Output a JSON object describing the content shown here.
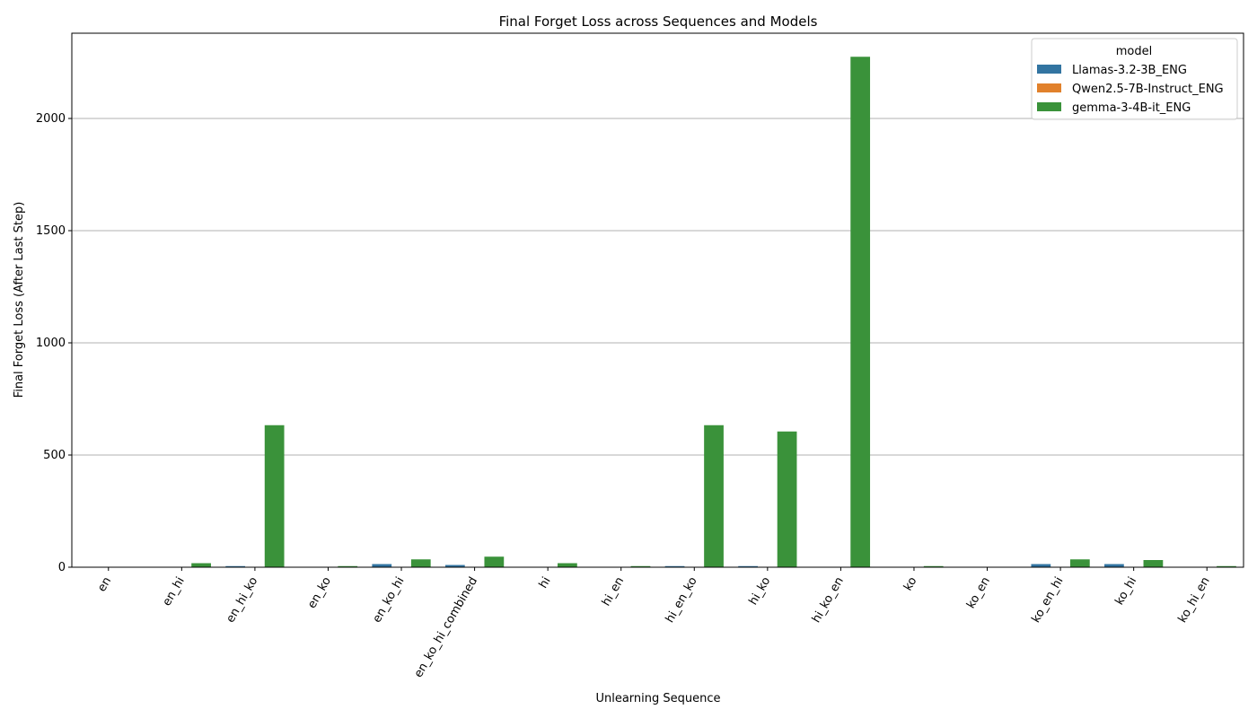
{
  "chart_data": {
    "type": "bar",
    "title": "Final Forget Loss across Sequences and Models",
    "xlabel": "Unlearning Sequence",
    "ylabel": "Final Forget Loss (After Last Step)",
    "ylim": [
      0,
      2380
    ],
    "yticks": [
      0,
      500,
      1000,
      1500,
      2000
    ],
    "grid": "horizontal",
    "legend": {
      "title": "model",
      "placement": "top-right"
    },
    "categories": [
      "en",
      "en_hi",
      "en_hi_ko",
      "en_ko",
      "en_ko_hi",
      "en_ko_hi_combined",
      "hi",
      "hi_en",
      "hi_en_ko",
      "hi_ko",
      "hi_ko_en",
      "ko",
      "ko_en",
      "ko_en_hi",
      "ko_hi",
      "ko_hi_en"
    ],
    "series": [
      {
        "name": "Llamas-3.2-3B_ENG",
        "color": "#3274a1",
        "values": [
          0.5,
          0.5,
          5,
          0.5,
          14,
          10,
          0.5,
          0.5,
          5,
          5,
          0.5,
          0.5,
          0.5,
          14,
          14,
          0.5
        ]
      },
      {
        "name": "Qwen2.5-7B-Instruct_ENG",
        "color": "#e1812c",
        "values": [
          0,
          0,
          0,
          0,
          0,
          0,
          0,
          0,
          0,
          0,
          0,
          0,
          0,
          0,
          0,
          0
        ]
      },
      {
        "name": "gemma-3-4B-it_ENG",
        "color": "#3a923a",
        "values": [
          0.5,
          18,
          633,
          5,
          35,
          47,
          18,
          5,
          633,
          605,
          2275,
          5,
          0.5,
          35,
          32,
          5
        ]
      }
    ]
  }
}
